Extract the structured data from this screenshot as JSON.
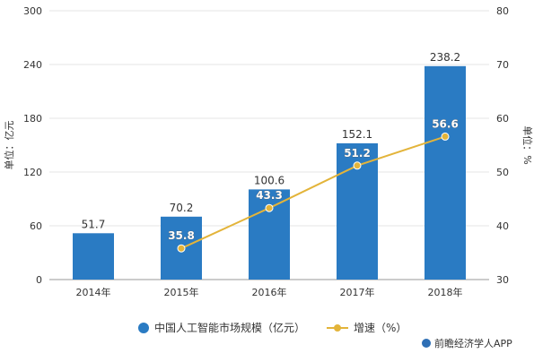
{
  "chart_data": {
    "type": "bar",
    "categories": [
      "2014年",
      "2015年",
      "2016年",
      "2017年",
      "2018年"
    ],
    "series": [
      {
        "name": "中国人工智能市场规模（亿元）",
        "type": "bar",
        "axis": "left",
        "values": [
          51.7,
          70.2,
          100.6,
          152.1,
          238.2
        ]
      },
      {
        "name": "增速（%）",
        "type": "line",
        "axis": "right",
        "values": [
          null,
          35.8,
          43.3,
          51.2,
          56.6
        ]
      }
    ],
    "ylabel": "单位：亿元",
    "ylabel_right": "单位：%",
    "ylim": [
      0,
      300
    ],
    "yticks": [
      0,
      60,
      120,
      180,
      240,
      300
    ],
    "ylim_right": [
      30,
      80
    ],
    "yticks_right": [
      30,
      40,
      50,
      60,
      70,
      80
    ],
    "grid": true,
    "legend_position": "bottom-center",
    "bar_labels": [
      "51.7",
      "70.2",
      "100.6",
      "152.1",
      "238.2"
    ],
    "line_labels": [
      "",
      "35.8",
      "43.3",
      "51.2",
      "56.6"
    ]
  },
  "colors": {
    "bar": "#2a7bc3",
    "line": "#e3b43a",
    "grid": "#e6e6e6",
    "axis": "#999999",
    "text": "#333333"
  },
  "source": {
    "icon": "logo-dot-icon",
    "text": "前瞻经济学人APP"
  }
}
